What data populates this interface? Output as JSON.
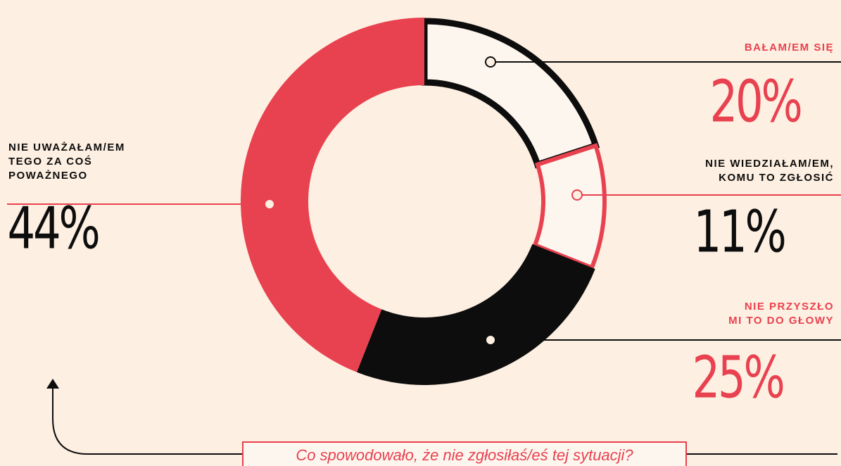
{
  "chart_data": {
    "type": "donut",
    "title": "Co spowodowało, że nie zgłosiłaś/eś tej sytuacji?",
    "categories": [
      "BAŁAM/EM SIĘ",
      "NIE WIEDZIAŁAM/EM,\nKOMU TO ZGŁOSIĆ",
      "NIE PRZYSZŁO\nMI TO DO GŁOWY",
      "NIE UWAŻAŁAM/EM\nTEGO ZA COŚ\nPOWAŻNEGO"
    ],
    "values": [
      20,
      11,
      25,
      44
    ],
    "value_labels": [
      "20%",
      "11%",
      "25%",
      "44%"
    ],
    "colors": [
      "#0d0d0d",
      "#e8414f",
      "#0d0d0d",
      "#e8414f"
    ],
    "outlined": [
      true,
      true,
      false,
      false
    ]
  }
}
